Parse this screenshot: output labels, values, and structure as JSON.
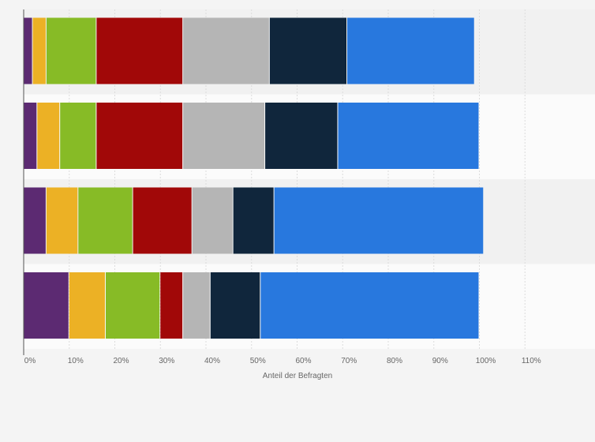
{
  "chart_data": {
    "type": "bar",
    "orientation": "horizontal",
    "stacked": true,
    "title": "",
    "xlabel": "Anteil der Befragten",
    "ylabel": "",
    "xlim": [
      0,
      120
    ],
    "x_ticks": [
      {
        "value": 0,
        "label": "0%"
      },
      {
        "value": 10,
        "label": "10%"
      },
      {
        "value": 20,
        "label": "20%"
      },
      {
        "value": 30,
        "label": "30%"
      },
      {
        "value": 40,
        "label": "40%"
      },
      {
        "value": 50,
        "label": "50%"
      },
      {
        "value": 60,
        "label": "60%"
      },
      {
        "value": 70,
        "label": "70%"
      },
      {
        "value": 80,
        "label": "80%"
      },
      {
        "value": 90,
        "label": "90%"
      },
      {
        "value": 100,
        "label": "100%"
      },
      {
        "value": 110,
        "label": "110%"
      }
    ],
    "grid": true,
    "legend": "none",
    "row_count": 4,
    "series": [
      {
        "color": "#5c2a72",
        "values": [
          2,
          3,
          5,
          10
        ]
      },
      {
        "color": "#ecb125",
        "values": [
          3,
          5,
          7,
          8
        ]
      },
      {
        "color": "#87bb26",
        "values": [
          11,
          8,
          12,
          12
        ]
      },
      {
        "color": "#a10808",
        "values": [
          19,
          19,
          13,
          5
        ]
      },
      {
        "color": "#b5b5b5",
        "values": [
          19,
          18,
          9,
          6
        ]
      },
      {
        "color": "#10263c",
        "values": [
          17,
          16,
          9,
          11
        ]
      },
      {
        "color": "#2878de",
        "values": [
          28,
          31,
          46,
          48
        ]
      }
    ]
  }
}
